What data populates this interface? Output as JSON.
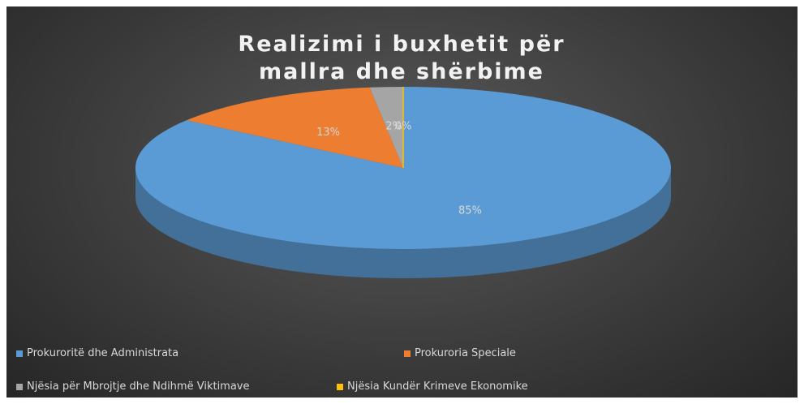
{
  "chart_data": {
    "type": "pie3d",
    "title": "Realizimi i buxhetit për mallra dhe shërbime",
    "categories": [
      "Prokuroritë dhe Administrata",
      "Prokuroria Speciale",
      "Njësia për Mbrojtje dhe Ndihmë Viktimave",
      "Njësia Kundër Krimeve Ekonomike"
    ],
    "values": [
      85,
      13,
      2,
      0
    ],
    "value_labels": [
      "85%",
      "13%",
      "2%",
      "0%"
    ],
    "colors": [
      "#5b9bd5",
      "#ed7d31",
      "#a5a5a5",
      "#ffc000"
    ],
    "legend": "bottom"
  }
}
